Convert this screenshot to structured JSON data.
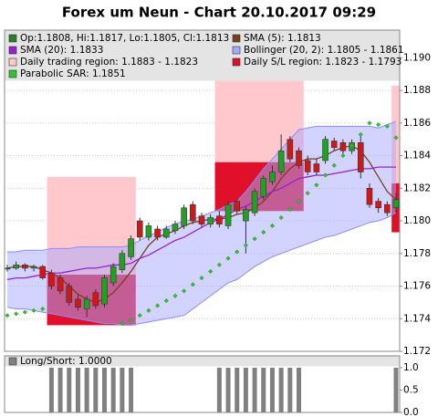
{
  "chart_data": [
    {
      "type": "candlestick",
      "title": "Forex um Neun - Chart 20.10.2017 09:29",
      "ylim": [
        1.172,
        1.1917
      ],
      "yticks": [
        {
          "value": 1.172,
          "label": "1.172"
        },
        {
          "value": 1.174,
          "label": "1.174"
        },
        {
          "value": 1.176,
          "label": "1.176"
        },
        {
          "value": 1.178,
          "label": "1.178"
        },
        {
          "value": 1.18,
          "label": "1.180"
        },
        {
          "value": 1.182,
          "label": "1.182"
        },
        {
          "value": 1.184,
          "label": "1.184"
        },
        {
          "value": 1.186,
          "label": "1.186"
        },
        {
          "value": 1.188,
          "label": "1.188"
        },
        {
          "value": 1.19,
          "label": "1.190"
        }
      ],
      "grid": true,
      "series": [
        {
          "name": "Op:1.1808, Hi:1.1817, Lo:1.1805, Cl:1.1813",
          "kind": "ohlc",
          "color": "#2d7d2d",
          "up_color": "#22a022",
          "down_color": "#d01818",
          "open": [
            1.1771,
            1.1771,
            1.1773,
            1.1771,
            1.1772,
            1.1768,
            1.1765,
            1.176,
            1.1752,
            1.1746,
            1.1756,
            1.1749,
            1.1762,
            1.177,
            1.1778,
            1.18,
            1.179,
            1.1795,
            1.179,
            1.1794,
            1.1797,
            1.181,
            1.1803,
            1.1798,
            1.1803,
            1.1797,
            1.1812,
            1.18,
            1.1805,
            1.1815,
            1.1824,
            1.183,
            1.185,
            1.1843,
            1.1837,
            1.1835,
            1.1837,
            1.1849,
            1.1848,
            1.1843,
            1.1848,
            1.182,
            1.1812,
            1.181,
            1.1808
          ],
          "high": [
            1.1773,
            1.1775,
            1.1774,
            1.1773,
            1.1773,
            1.177,
            1.1767,
            1.1762,
            1.1755,
            1.1754,
            1.1758,
            1.1767,
            1.1774,
            1.1782,
            1.1791,
            1.1802,
            1.1799,
            1.1797,
            1.1797,
            1.18,
            1.181,
            1.1812,
            1.1805,
            1.1804,
            1.1806,
            1.1812,
            1.1814,
            1.1809,
            1.182,
            1.1828,
            1.1834,
            1.1853,
            1.1852,
            1.1845,
            1.184,
            1.1838,
            1.1852,
            1.1851,
            1.185,
            1.185,
            1.1852,
            1.1823,
            1.1814,
            1.1812,
            1.1817
          ],
          "low": [
            1.1769,
            1.177,
            1.1769,
            1.1769,
            1.1764,
            1.1758,
            1.1755,
            1.1748,
            1.1745,
            1.1741,
            1.1746,
            1.1747,
            1.176,
            1.1768,
            1.1776,
            1.1788,
            1.1788,
            1.1788,
            1.1789,
            1.1792,
            1.1795,
            1.1798,
            1.1796,
            1.1796,
            1.1796,
            1.1795,
            1.1804,
            1.178,
            1.1803,
            1.1813,
            1.1822,
            1.1828,
            1.1836,
            1.1832,
            1.1828,
            1.1828,
            1.1835,
            1.1843,
            1.1841,
            1.1841,
            1.1826,
            1.1808,
            1.1805,
            1.1803,
            1.1805
          ],
          "close": [
            1.1771,
            1.1773,
            1.1771,
            1.1772,
            1.1765,
            1.176,
            1.1757,
            1.175,
            1.1747,
            1.1752,
            1.1748,
            1.1765,
            1.1772,
            1.178,
            1.1789,
            1.179,
            1.1797,
            1.179,
            1.1795,
            1.1798,
            1.1808,
            1.18,
            1.1798,
            1.1802,
            1.1798,
            1.181,
            1.1806,
            1.1807,
            1.1818,
            1.1826,
            1.183,
            1.1843,
            1.1838,
            1.1834,
            1.183,
            1.183,
            1.185,
            1.1845,
            1.1843,
            1.1848,
            1.183,
            1.181,
            1.1808,
            1.1805,
            1.1813
          ]
        },
        {
          "name": "SMA (5): 1.1813",
          "kind": "line",
          "color": "#7a3f1c",
          "values": [
            1.1771,
            1.1772,
            1.1772,
            1.1772,
            1.177,
            1.1768,
            1.1765,
            1.176,
            1.1755,
            1.1752,
            1.175,
            1.1752,
            1.1756,
            1.1762,
            1.1769,
            1.1777,
            1.1785,
            1.179,
            1.1792,
            1.1794,
            1.1797,
            1.1799,
            1.18,
            1.1801,
            1.1801,
            1.1802,
            1.1804,
            1.1805,
            1.1808,
            1.1812,
            1.1818,
            1.1826,
            1.1832,
            1.1836,
            1.1838,
            1.1838,
            1.184,
            1.1843,
            1.1845,
            1.1846,
            1.1843,
            1.1836,
            1.1827,
            1.1818,
            1.1813
          ]
        },
        {
          "name": "SMA (20): 1.1833",
          "kind": "line",
          "color": "#9a1fd0",
          "values": [
            1.1764,
            1.1765,
            1.1765,
            1.1766,
            1.1767,
            1.1768,
            1.1768,
            1.1769,
            1.177,
            1.1771,
            1.1771,
            1.1772,
            1.1773,
            1.1773,
            1.1774,
            1.1777,
            1.1779,
            1.1782,
            1.1785,
            1.1788,
            1.179,
            1.1793,
            1.1796,
            1.1799,
            1.1801,
            1.1804,
            1.1807,
            1.1809,
            1.1812,
            1.1815,
            1.1818,
            1.182,
            1.1823,
            1.1826,
            1.1827,
            1.1828,
            1.1828,
            1.1829,
            1.183,
            1.1831,
            1.1832,
            1.1832,
            1.1833,
            1.1833,
            1.1833
          ]
        },
        {
          "name": "Bollinger (20, 2): 1.1805 - 1.1861",
          "kind": "band",
          "color": "#a8a8ff",
          "upper": [
            1.1781,
            1.1781,
            1.1782,
            1.1782,
            1.1782,
            1.1783,
            1.1783,
            1.1783,
            1.1784,
            1.1784,
            1.1784,
            1.1784,
            1.1784,
            1.1784,
            1.1785,
            1.1788,
            1.1791,
            1.1793,
            1.1796,
            1.1798,
            1.18,
            1.1801,
            1.1803,
            1.1805,
            1.1807,
            1.181,
            1.1812,
            1.1818,
            1.1825,
            1.1832,
            1.1838,
            1.1844,
            1.185,
            1.1856,
            1.1857,
            1.1858,
            1.1858,
            1.1858,
            1.1858,
            1.1858,
            1.1858,
            1.1858,
            1.1857,
            1.1859,
            1.1861
          ],
          "lower": [
            1.1747,
            1.1746,
            1.1746,
            1.1745,
            1.1744,
            1.1743,
            1.1742,
            1.1741,
            1.174,
            1.1739,
            1.1738,
            1.1737,
            1.1737,
            1.1736,
            1.1736,
            1.1737,
            1.1738,
            1.1739,
            1.174,
            1.1741,
            1.1742,
            1.1746,
            1.175,
            1.1754,
            1.1758,
            1.1762,
            1.1764,
            1.1768,
            1.1772,
            1.1775,
            1.1778,
            1.178,
            1.1782,
            1.1784,
            1.1786,
            1.1788,
            1.179,
            1.1791,
            1.1793,
            1.1795,
            1.1797,
            1.1799,
            1.18,
            1.1802,
            1.1805
          ]
        },
        {
          "name": "Daily trading region: 1.1883 - 1.1823",
          "kind": "region",
          "color": "#ffc8cc",
          "high": [
            null,
            null,
            null,
            null,
            null,
            1.1827,
            1.1827,
            1.1827,
            1.1827,
            1.1827,
            1.1827,
            1.1827,
            1.1827,
            1.1827,
            1.1827,
            null,
            null,
            null,
            null,
            null,
            null,
            null,
            null,
            null,
            1.1917,
            1.1917,
            1.1917,
            1.1917,
            1.1917,
            1.1917,
            1.1917,
            1.1917,
            1.1917,
            1.1917,
            null,
            null,
            null,
            null,
            null,
            null,
            null,
            null,
            null,
            null,
            1.1883
          ],
          "low": [
            null,
            null,
            null,
            null,
            null,
            1.1767,
            1.1767,
            1.1767,
            1.1767,
            1.1767,
            1.1767,
            1.1767,
            1.1767,
            1.1767,
            1.1767,
            null,
            null,
            null,
            null,
            null,
            null,
            null,
            null,
            null,
            1.1836,
            1.1836,
            1.1836,
            1.1836,
            1.1836,
            1.1836,
            1.1836,
            1.1836,
            1.1836,
            1.1836,
            null,
            null,
            null,
            null,
            null,
            null,
            null,
            null,
            null,
            null,
            1.1823
          ]
        },
        {
          "name": "Daily S/L region: 1.1823 - 1.1793",
          "kind": "region",
          "color": "#e0102a",
          "high": [
            null,
            null,
            null,
            null,
            null,
            1.1767,
            1.1767,
            1.1767,
            1.1767,
            1.1767,
            1.1767,
            1.1767,
            1.1767,
            1.1767,
            1.1767,
            null,
            null,
            null,
            null,
            null,
            null,
            null,
            null,
            null,
            1.1836,
            1.1836,
            1.1836,
            1.1836,
            1.1836,
            1.1836,
            1.1836,
            1.1836,
            1.1836,
            1.1836,
            null,
            null,
            null,
            null,
            null,
            null,
            null,
            null,
            null,
            null,
            1.1823
          ],
          "low": [
            null,
            null,
            null,
            null,
            null,
            1.1736,
            1.1736,
            1.1736,
            1.1736,
            1.1736,
            1.1736,
            1.1736,
            1.1736,
            1.1736,
            1.1736,
            null,
            null,
            null,
            null,
            null,
            null,
            null,
            null,
            null,
            1.1806,
            1.1806,
            1.1806,
            1.1806,
            1.1806,
            1.1806,
            1.1806,
            1.1806,
            1.1806,
            1.1806,
            null,
            null,
            null,
            null,
            null,
            null,
            null,
            null,
            null,
            null,
            1.1793
          ]
        },
        {
          "name": "Parabolic SAR: 1.1851",
          "kind": "dots",
          "color": "#2fc42f",
          "values": [
            1.1742,
            1.1743,
            1.1744,
            1.1745,
            1.1746,
            null,
            null,
            null,
            null,
            null,
            null,
            null,
            null,
            1.1737,
            1.1739,
            1.1742,
            1.1745,
            1.1748,
            1.1751,
            1.1754,
            1.1757,
            1.1761,
            1.1765,
            1.1769,
            1.1773,
            1.1777,
            1.1781,
            1.1785,
            1.1789,
            1.1793,
            1.1797,
            1.1802,
            1.1807,
            1.1812,
            1.1817,
            1.1822,
            1.1828,
            1.1834,
            1.184,
            1.1846,
            1.1853,
            1.186,
            1.1859,
            1.1858,
            1.1851
          ]
        }
      ]
    },
    {
      "type": "bar",
      "ylim": [
        0,
        1
      ],
      "yticks": [
        {
          "value": 0,
          "label": "0.0"
        },
        {
          "value": 0.5,
          "label": "0.5"
        },
        {
          "value": 1,
          "label": "1.0"
        }
      ],
      "series": [
        {
          "name": "Long/Short: 1.0000",
          "color": "#808080",
          "values": [
            0,
            0,
            0,
            0,
            0,
            1,
            1,
            1,
            1,
            1,
            1,
            1,
            1,
            1,
            1,
            0,
            0,
            0,
            0,
            0,
            0,
            0,
            0,
            0,
            1,
            1,
            1,
            1,
            1,
            1,
            1,
            1,
            1,
            1,
            0,
            0,
            0,
            0,
            0,
            0,
            0,
            0,
            0,
            0,
            1
          ]
        }
      ]
    }
  ]
}
